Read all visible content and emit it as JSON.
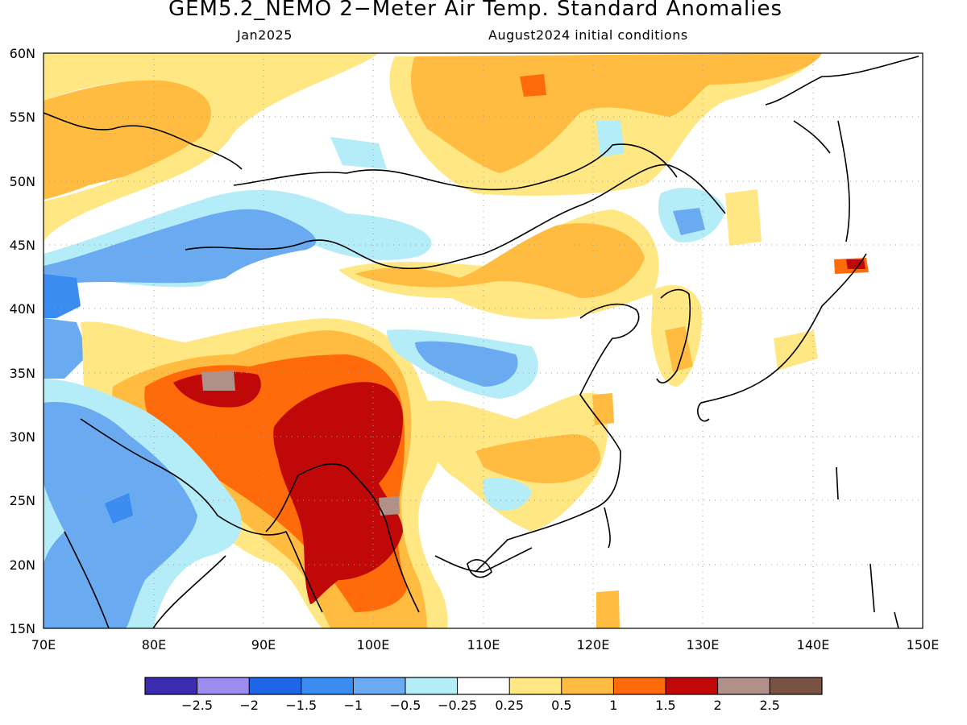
{
  "map": {
    "title": "GEM5.2_NEMO 2−Meter Air Temp. Standard Anomalies",
    "valid_month": "Jan2025",
    "init_conditions": "August2024 initial conditions",
    "lat_labels": [
      "60N",
      "55N",
      "50N",
      "45N",
      "40N",
      "35N",
      "30N",
      "25N",
      "20N",
      "15N"
    ],
    "lon_labels": [
      "70E",
      "80E",
      "90E",
      "100E",
      "110E",
      "120E",
      "130E",
      "140E",
      "150E"
    ],
    "lon_range": [
      70,
      150
    ],
    "lat_range": [
      15,
      60
    ],
    "gridlines": "dotted",
    "colors": {
      "c_m3": "#3b2bb0",
      "c_m25": "#9c8cf0",
      "c_m2": "#1f66e6",
      "c_m15": "#3a8cf0",
      "c_m1": "#6aaaf0",
      "c_m05": "#b4ecf8",
      "c_neutral": "#ffffff",
      "c_p025": "#ffe884",
      "c_p05": "#ffbc40",
      "c_p1": "#ff6a0a",
      "c_p15": "#c00808",
      "c_p2": "#b09088",
      "c_p25": "#7a5244",
      "coast": "#000000"
    }
  },
  "colorbar": {
    "ticks": [
      "−2.5",
      "−2",
      "−1.5",
      "−1",
      "−0.5",
      "−0.25",
      "0.25",
      "0.5",
      "1",
      "1.5",
      "2",
      "2.5"
    ]
  }
}
